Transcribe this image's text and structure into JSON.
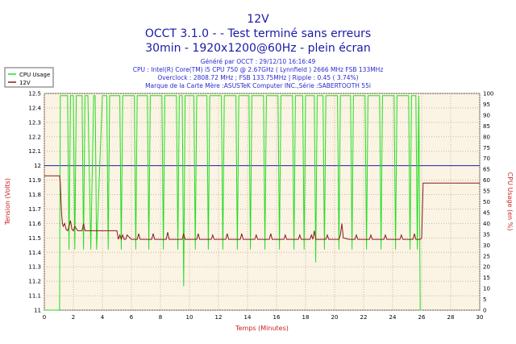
{
  "header": {
    "title": "12V",
    "subtitle1": "OCCT 3.1.0 -  - Test terminé sans erreurs",
    "subtitle2": "30min - 1920x1200@60Hz - plein écran",
    "info1": "Généré par OCCT : 29/12/10 16:16:49",
    "info2": "CPU : Intel(R) Core(TM) i5 CPU 750 @ 2.67GHz ( Lynnfield ) 2666 MHz FSB 133MHz",
    "info3": "Overclock : 2808.72 MHz ; FSB 133.75MHz | Ripple : 0.45 ( 3.74%)",
    "info4": "Marque de la Carte Mère :ASUSTeK Computer INC.,Série :SABERTOOTH 55i"
  },
  "chart_data": {
    "type": "line",
    "xlabel": "Temps (Minutes)",
    "ylabel": "Tension (Volts)",
    "y2label": "CPU Usage (en %)",
    "xlim": [
      0,
      30
    ],
    "ylim": [
      11,
      12.5
    ],
    "y2lim": [
      0,
      100
    ],
    "x_ticks": [
      "0",
      "2",
      "4",
      "6",
      "8",
      "10",
      "12",
      "14",
      "16",
      "18",
      "20",
      "22",
      "24",
      "26",
      "28",
      "30"
    ],
    "y_ticks": [
      "11",
      "11.1",
      "11.2",
      "11.3",
      "11.4",
      "11.5",
      "11.6",
      "11.7",
      "11.8",
      "11.9",
      "12",
      "12.1",
      "12.2",
      "12.3",
      "12.4",
      "12.5"
    ],
    "y2_ticks": [
      "0",
      "5",
      "10",
      "15",
      "20",
      "25",
      "30",
      "35",
      "40",
      "45",
      "50",
      "55",
      "60",
      "65",
      "70",
      "75",
      "80",
      "85",
      "90",
      "95",
      "100"
    ],
    "reference_line_y": 12,
    "legend": [
      "CPU Usage",
      "12V"
    ],
    "colors": {
      "cpu_usage": "#22dd22",
      "voltage": "#8b1a1a",
      "reference": "#2222aa",
      "plot_bg": "#fbf3e4",
      "grid": "#c9b7a0",
      "titles": "#1a1aa8",
      "axis_labels": "#cc2222"
    },
    "series": [
      {
        "name": "12V",
        "x": [
          0,
          1.05,
          1.1,
          1.15,
          1.2,
          1.25,
          1.3,
          1.4,
          1.5,
          1.6,
          1.7,
          1.8,
          1.9,
          2.0,
          2.1,
          2.3,
          2.6,
          2.7,
          2.8,
          3.0,
          3.5,
          4.0,
          5.0,
          5.1,
          5.2,
          5.3,
          5.4,
          5.5,
          5.6,
          5.7,
          6.0,
          6.4,
          6.5,
          6.6,
          7.0,
          7.4,
          7.5,
          7.6,
          8.0,
          8.4,
          8.5,
          8.6,
          9.0,
          9.5,
          9.6,
          9.7,
          10.0,
          10.5,
          10.6,
          10.7,
          11.0,
          11.5,
          11.6,
          11.7,
          12.0,
          12.5,
          12.6,
          12.7,
          13.0,
          13.5,
          13.6,
          13.7,
          14.0,
          14.5,
          14.6,
          14.7,
          15.0,
          15.5,
          15.6,
          15.7,
          16.0,
          16.5,
          16.6,
          16.7,
          17.0,
          17.5,
          17.6,
          17.7,
          18.0,
          18.3,
          18.4,
          18.5,
          18.6,
          18.7,
          19.0,
          19.4,
          19.5,
          19.6,
          20.0,
          20.3,
          20.4,
          20.5,
          20.6,
          21.0,
          21.4,
          21.5,
          21.6,
          22.0,
          22.4,
          22.5,
          22.6,
          23.0,
          23.4,
          23.5,
          23.6,
          24.0,
          24.5,
          24.6,
          24.7,
          25.0,
          25.4,
          25.5,
          25.6,
          25.9,
          26.0,
          26.1,
          26.2,
          30
        ],
        "y": [
          11.93,
          11.93,
          11.88,
          11.75,
          11.65,
          11.6,
          11.58,
          11.6,
          11.56,
          11.55,
          11.58,
          11.62,
          11.56,
          11.55,
          11.58,
          11.55,
          11.55,
          11.6,
          11.55,
          11.55,
          11.55,
          11.55,
          11.55,
          11.49,
          11.52,
          11.49,
          11.52,
          11.49,
          11.49,
          11.52,
          11.49,
          11.49,
          11.53,
          11.49,
          11.49,
          11.49,
          11.53,
          11.49,
          11.49,
          11.49,
          11.54,
          11.49,
          11.49,
          11.49,
          11.53,
          11.49,
          11.49,
          11.49,
          11.53,
          11.49,
          11.49,
          11.49,
          11.52,
          11.49,
          11.49,
          11.49,
          11.53,
          11.49,
          11.49,
          11.49,
          11.53,
          11.49,
          11.49,
          11.49,
          11.52,
          11.49,
          11.49,
          11.49,
          11.53,
          11.49,
          11.49,
          11.49,
          11.52,
          11.49,
          11.49,
          11.49,
          11.52,
          11.49,
          11.49,
          11.49,
          11.52,
          11.49,
          11.55,
          11.49,
          11.49,
          11.49,
          11.52,
          11.49,
          11.49,
          11.49,
          11.52,
          11.6,
          11.5,
          11.49,
          11.49,
          11.52,
          11.49,
          11.49,
          11.49,
          11.52,
          11.49,
          11.49,
          11.49,
          11.52,
          11.49,
          11.49,
          11.49,
          11.52,
          11.49,
          11.49,
          11.49,
          11.53,
          11.49,
          11.49,
          11.5,
          11.88,
          11.88,
          11.88
        ]
      },
      {
        "name": "CPU Usage",
        "x": [
          0,
          1.0,
          1.05,
          1.1,
          1.2,
          1.25,
          1.6,
          1.7,
          1.8,
          1.9,
          2.0,
          2.1,
          2.2,
          2.6,
          2.7,
          2.8,
          3.0,
          3.2,
          3.4,
          3.5,
          3.6,
          4.0,
          4.3,
          4.4,
          4.5,
          5.0,
          5.2,
          5.3,
          5.4,
          5.5,
          6.0,
          6.2,
          6.3,
          6.4,
          6.5,
          7.0,
          7.1,
          7.2,
          7.3,
          7.4,
          8.0,
          8.1,
          8.2,
          8.3,
          8.4,
          9.0,
          9.1,
          9.2,
          9.3,
          9.4,
          9.5,
          9.6,
          9.7,
          9.8,
          10.0,
          10.3,
          10.4,
          10.5,
          10.6,
          11.0,
          11.2,
          11.3,
          11.4,
          11.5,
          12.0,
          12.2,
          12.3,
          12.4,
          12.5,
          13.0,
          13.2,
          13.3,
          13.4,
          13.5,
          14.0,
          14.1,
          14.2,
          14.3,
          14.4,
          15.0,
          15.1,
          15.2,
          15.3,
          15.4,
          16.0,
          16.1,
          16.2,
          16.3,
          16.4,
          17.0,
          17.1,
          17.2,
          17.3,
          17.4,
          17.7,
          17.8,
          17.9,
          18.0,
          18.1,
          18.5,
          18.6,
          18.7,
          18.8,
          19.0,
          19.1,
          19.2,
          19.3,
          19.4,
          20.0,
          20.1,
          20.2,
          20.3,
          20.4,
          21.0,
          21.1,
          21.2,
          21.3,
          21.4,
          22.0,
          22.1,
          22.2,
          22.3,
          22.4,
          23.0,
          23.1,
          23.2,
          23.3,
          23.4,
          24.0,
          24.1,
          24.2,
          24.3,
          24.4,
          25.0,
          25.1,
          25.2,
          25.3,
          25.4,
          25.6,
          25.7,
          25.8,
          25.9,
          26.0
        ],
        "y": [
          0,
          0,
          0,
          99,
          99,
          99,
          99,
          28,
          99,
          99,
          99,
          28,
          99,
          99,
          28,
          99,
          99,
          28,
          99,
          99,
          28,
          99,
          99,
          28,
          99,
          99,
          99,
          28,
          99,
          99,
          99,
          99,
          28,
          99,
          99,
          99,
          99,
          28,
          99,
          99,
          99,
          99,
          28,
          99,
          99,
          99,
          99,
          28,
          99,
          99,
          99,
          11,
          99,
          99,
          99,
          99,
          28,
          99,
          99,
          99,
          99,
          28,
          99,
          99,
          99,
          99,
          28,
          99,
          99,
          99,
          99,
          28,
          99,
          99,
          99,
          99,
          28,
          99,
          99,
          99,
          99,
          28,
          99,
          99,
          99,
          99,
          28,
          99,
          99,
          99,
          99,
          28,
          99,
          99,
          99,
          99,
          28,
          99,
          99,
          99,
          99,
          22,
          99,
          99,
          99,
          99,
          28,
          99,
          99,
          99,
          99,
          28,
          99,
          99,
          99,
          28,
          99,
          99,
          99,
          99,
          28,
          99,
          99,
          99,
          99,
          28,
          99,
          99,
          99,
          99,
          28,
          99,
          99,
          99,
          99,
          28,
          99,
          99,
          99,
          28,
          99,
          0,
          0
        ]
      }
    ]
  }
}
